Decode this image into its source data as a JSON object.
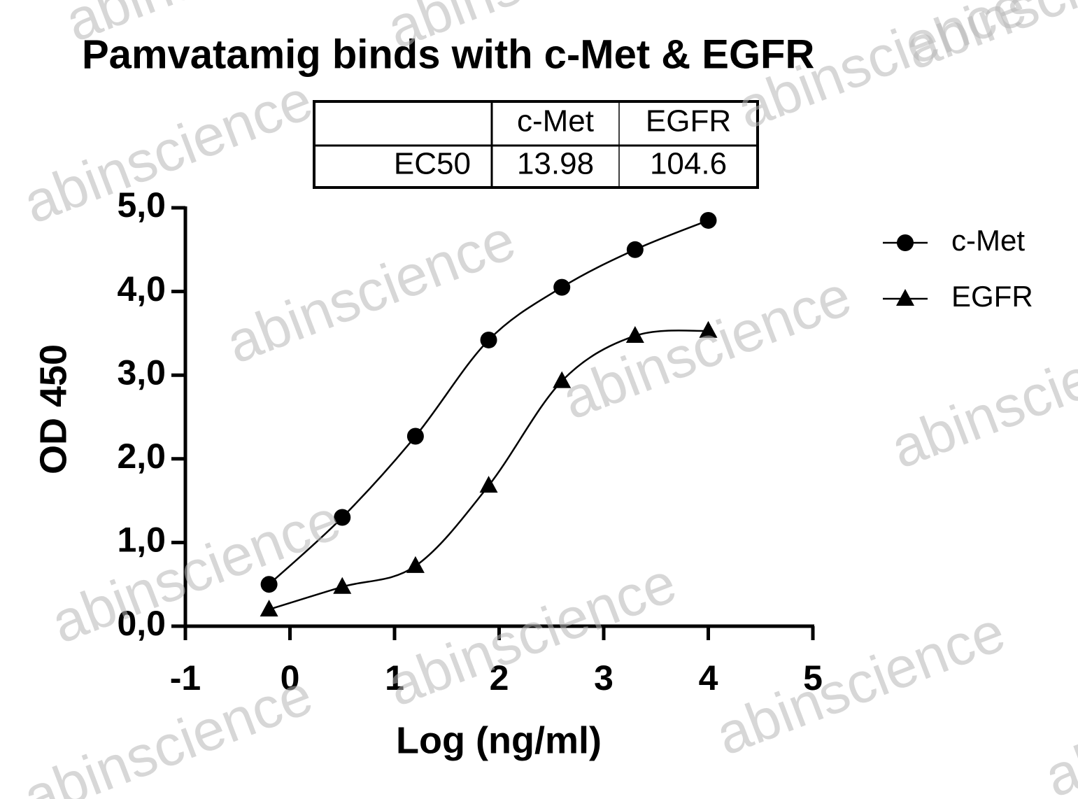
{
  "chart_data": {
    "type": "scatter",
    "title": "Pamvatamig binds with c-Met & EGFR",
    "x_label": "Log (ng/ml)",
    "y_label": "OD 450",
    "x": [
      -0.2,
      0.5,
      1.2,
      1.9,
      2.6,
      3.3,
      4.0
    ],
    "series": [
      {
        "name": "c-Met",
        "color": "#000000",
        "marker": "circle",
        "values": [
          0.5,
          1.3,
          2.27,
          3.42,
          4.05,
          4.5,
          4.85
        ]
      },
      {
        "name": "EGFR",
        "color": "#000000",
        "marker": "triangle",
        "values": [
          0.2,
          0.47,
          0.72,
          1.68,
          2.93,
          3.47,
          3.53
        ]
      }
    ],
    "xlim": [
      -1,
      5
    ],
    "xticks": [
      -1,
      0,
      1,
      2,
      3,
      4,
      5
    ],
    "ylim": [
      0,
      5
    ],
    "yticks": [
      {
        "value": 0,
        "label": "0,0"
      },
      {
        "value": 1,
        "label": "1,0"
      },
      {
        "value": 2,
        "label": "2,0"
      },
      {
        "value": 3,
        "label": "3,0"
      },
      {
        "value": 4,
        "label": "4,0"
      },
      {
        "value": 5,
        "label": "5,0"
      }
    ],
    "fit_curve": true,
    "legend": "right",
    "ec50_table": {
      "row_label": "EC50",
      "columns": [
        "c-Met",
        "EGFR"
      ],
      "values": [
        13.98,
        104.6
      ]
    }
  },
  "watermark": "abinscience"
}
